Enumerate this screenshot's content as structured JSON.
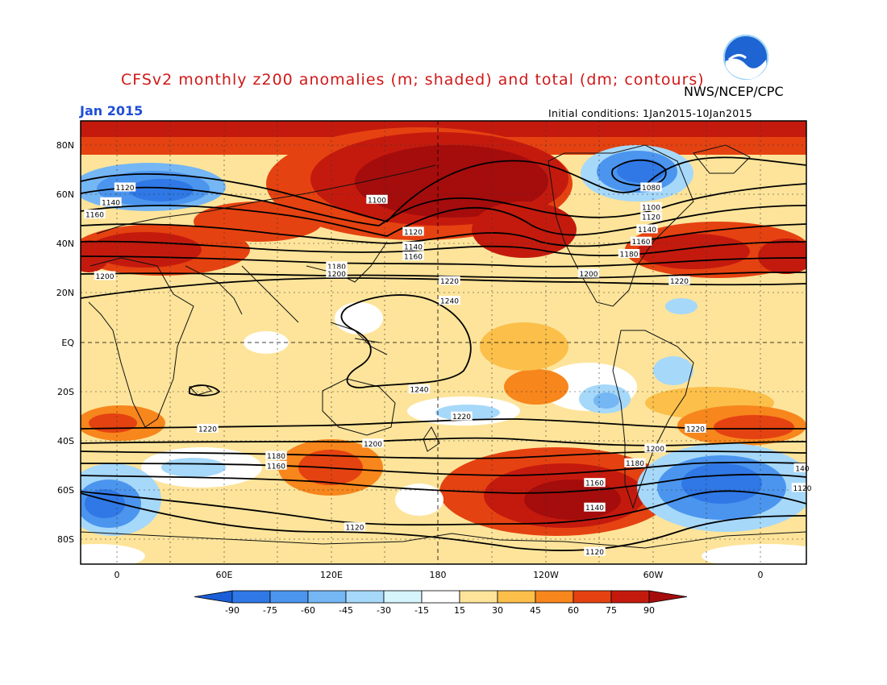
{
  "title": "CFSv2 monthly z200 anomalies (m; shaded) and total (dm; contours)",
  "organization": "NWS/NCEP/CPC",
  "month": "Jan 2015",
  "initial_conditions": "Initial conditions: 1Jan2015-10Jan2015",
  "logo_icon": "noaa-logo-icon",
  "lat_labels": [
    "80N",
    "60N",
    "40N",
    "20N",
    "EQ",
    "20S",
    "40S",
    "60S",
    "80S"
  ],
  "lon_labels": [
    "0",
    "60E",
    "120E",
    "180",
    "120W",
    "60W",
    "0"
  ],
  "colorbar": {
    "labels": [
      "-90",
      "-75",
      "-60",
      "-45",
      "-30",
      "-15",
      "15",
      "30",
      "45",
      "60",
      "75",
      "90"
    ],
    "colors": [
      "#1a5ed8",
      "#2f78e6",
      "#4b95ee",
      "#75b6f4",
      "#a6d8fa",
      "#d6f4fb",
      "#ffffff",
      "#fde49a",
      "#fbbf4a",
      "#f7861c",
      "#e54211",
      "#c41a0e",
      "#a50c0c"
    ]
  },
  "contour_labels": [
    {
      "text": "1120",
      "lon": 2,
      "lat": 63
    },
    {
      "text": "1140",
      "lon": -5,
      "lat": 57
    },
    {
      "text": "1160",
      "lon": -13,
      "lat": 52
    },
    {
      "text": "1200",
      "lon": -8,
      "lat": 27
    },
    {
      "text": "1100",
      "lon": 127,
      "lat": 58
    },
    {
      "text": "1120",
      "lon": 145,
      "lat": 45
    },
    {
      "text": "1140",
      "lon": 145,
      "lat": 39
    },
    {
      "text": "1160",
      "lon": 145,
      "lat": 35
    },
    {
      "text": "1180",
      "lon": 107,
      "lat": 31
    },
    {
      "text": "1200",
      "lon": 107,
      "lat": 28
    },
    {
      "text": "1220",
      "lon": 163,
      "lat": 25
    },
    {
      "text": "1240",
      "lon": 163,
      "lat": 17
    },
    {
      "text": "1240",
      "lon": 148,
      "lat": -19
    },
    {
      "text": "1080",
      "lon": -97,
      "lat": 63
    },
    {
      "text": "1100",
      "lon": -97,
      "lat": 55
    },
    {
      "text": "1120",
      "lon": -97,
      "lat": 51
    },
    {
      "text": "1140",
      "lon": -99,
      "lat": 46
    },
    {
      "text": "1160",
      "lon": -102,
      "lat": 41
    },
    {
      "text": "1180",
      "lon": -108,
      "lat": 36
    },
    {
      "text": "1200",
      "lon": -128,
      "lat": 28
    },
    {
      "text": "1220",
      "lon": -83,
      "lat": 25
    },
    {
      "text": "1220",
      "lon": 43,
      "lat": -35
    },
    {
      "text": "1200",
      "lon": 125,
      "lat": -41
    },
    {
      "text": "1220",
      "lon": 169,
      "lat": -30
    },
    {
      "text": "1220",
      "lon": -75,
      "lat": -35
    },
    {
      "text": "1200",
      "lon": -95,
      "lat": -43
    },
    {
      "text": "1180",
      "lon": -105,
      "lat": -49
    },
    {
      "text": "1160",
      "lon": -125,
      "lat": -57
    },
    {
      "text": "1140",
      "lon": -125,
      "lat": -67
    },
    {
      "text": "1120",
      "lon": -125,
      "lat": -85
    },
    {
      "text": "1180",
      "lon": 77,
      "lat": -46
    },
    {
      "text": "1160",
      "lon": 77,
      "lat": -50
    },
    {
      "text": "140",
      "lon": -22,
      "lat": -51
    },
    {
      "text": "1120",
      "lon": -22,
      "lat": -59
    },
    {
      "text": "1120",
      "lon": 116,
      "lat": -75
    }
  ]
}
